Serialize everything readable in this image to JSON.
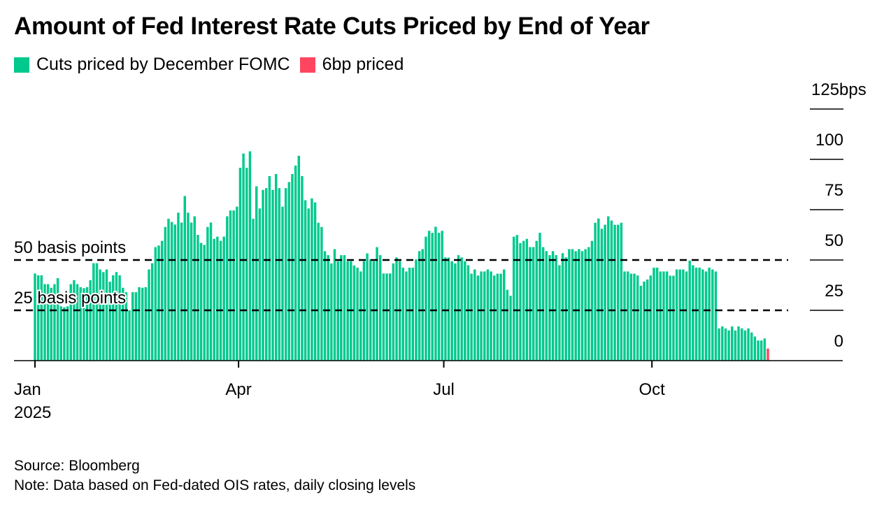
{
  "title": "Amount of Fed Interest Rate Cuts Priced by End of Year",
  "footer": {
    "source": "Source: Bloomberg",
    "note": "Note: Data based on Fed-dated OIS rates, daily closing levels"
  },
  "chart_data": {
    "type": "bar",
    "title": "Amount of Fed Interest Rate Cuts Priced by End of Year",
    "xlabel": "",
    "ylabel": "bps",
    "ylim": [
      0,
      125
    ],
    "y_ticks": [
      "0",
      "25",
      "50",
      "75",
      "100",
      "125bps"
    ],
    "y_tick_values": [
      0,
      25,
      50,
      75,
      100,
      125
    ],
    "x_ticks": [
      {
        "label": "Jan",
        "sublabel": "2025",
        "index": 0
      },
      {
        "label": "Apr",
        "index": 62.5
      },
      {
        "label": "Jul",
        "index": 125.5
      },
      {
        "label": "Oct",
        "index": 189.4
      }
    ],
    "legend": [
      {
        "name": "Cuts priced by December FOMC",
        "color": "#00c98d"
      },
      {
        "name": "6bp priced",
        "color": "#ff4560"
      }
    ],
    "legend_placement": "top-left",
    "reference_lines": [
      {
        "value": 50,
        "label": "50 basis points"
      },
      {
        "value": 25,
        "label": "25 basis points"
      }
    ],
    "series": [
      {
        "name": "Cuts priced by December FOMC",
        "color": "#00c98d",
        "values": [
          43.3,
          42.4,
          42.4,
          38,
          38,
          36.2,
          38,
          41,
          27,
          26.5,
          27,
          38,
          40,
          38,
          36.5,
          36,
          36.5,
          40,
          48.4,
          48.4,
          45.3,
          44,
          45.3,
          39.2,
          42.4,
          44,
          42.4,
          36.2,
          34,
          25,
          34,
          34,
          36.5,
          36.2,
          36.5,
          45.3,
          48.4,
          56.4,
          57.2,
          59.5,
          66.4,
          70.5,
          68.9,
          67.6,
          73.5,
          68.6,
          81.8,
          73.5,
          68.6,
          71.7,
          62.5,
          58.5,
          57.5,
          66.4,
          68.6,
          60.5,
          61.6,
          59.5,
          61.6,
          71.7,
          74.6,
          74.6,
          76.5,
          95.8,
          102.9,
          95.8,
          104,
          70.5,
          86.6,
          75.6,
          84.8,
          85.7,
          91.7,
          84.8,
          92.7,
          85.7,
          76.5,
          85.7,
          88.7,
          92.7,
          96.9,
          101.8,
          91.7,
          79.7,
          75.6,
          80.6,
          78.6,
          68.5,
          66.4,
          54.4,
          52.4,
          48.3,
          55.4,
          49.4,
          52.4,
          52.4,
          49.4,
          49.4,
          47.3,
          46.2,
          44.3,
          49.4,
          53.3,
          50.3,
          49.4,
          56.4,
          52.4,
          43.3,
          43.3,
          43.3,
          48.3,
          51.3,
          49.4,
          46.2,
          44.3,
          46.2,
          46.2,
          50.3,
          54.4,
          55.4,
          61.6,
          64.5,
          63.5,
          66.5,
          63.5,
          64.5,
          51.3,
          51.2,
          49.4,
          48.3,
          52.4,
          51.3,
          49.4,
          47.4,
          43.2,
          45.3,
          42.3,
          44.3,
          44.3,
          45.3,
          44.3,
          42.3,
          43.2,
          43.2,
          45.3,
          35.2,
          32.2,
          61.6,
          62.4,
          58.4,
          59.5,
          60.5,
          56.4,
          56.4,
          59.5,
          63.5,
          56.4,
          54.4,
          52.4,
          54.4,
          52.4,
          47.4,
          53.4,
          51.3,
          55.4,
          55.4,
          54.4,
          55.4,
          54.4,
          55.4,
          56.4,
          59.5,
          68.5,
          70.6,
          65.5,
          67.5,
          71.7,
          69.6,
          67.5,
          67.5,
          68.5,
          44.3,
          44.3,
          43.2,
          43.2,
          42.3,
          37.2,
          39.3,
          40.3,
          42.3,
          46.2,
          46.2,
          44.3,
          44.3,
          44.3,
          42.2,
          42.2,
          45.3,
          45.3,
          45.3,
          44.3,
          49.7,
          47.4,
          46.2,
          46.2,
          45.3,
          44.3,
          46.2,
          45.3,
          44.3,
          16,
          17,
          16,
          15,
          17,
          15,
          17,
          16,
          15,
          16,
          14,
          12,
          10,
          10,
          11
        ]
      },
      {
        "name": "6bp priced",
        "color": "#ff4560",
        "values": [
          6
        ]
      }
    ]
  }
}
